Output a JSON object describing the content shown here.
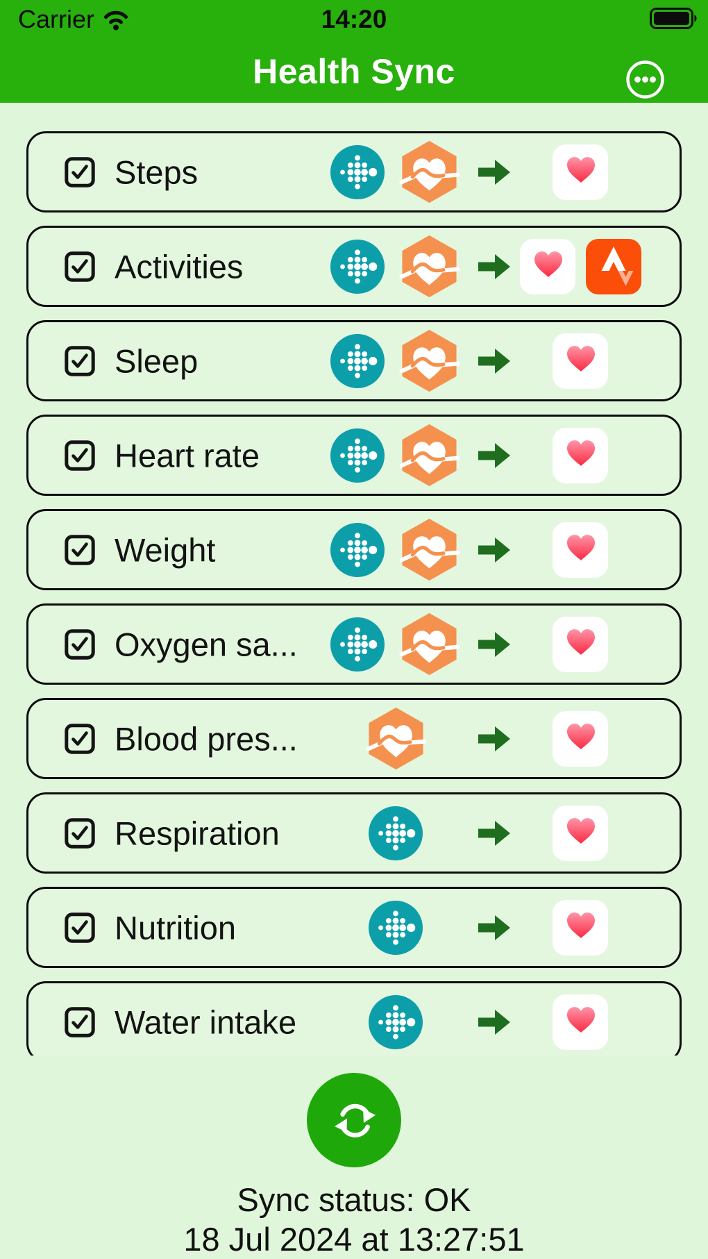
{
  "status_bar": {
    "carrier": "Carrier",
    "time": "14:20",
    "wifi": "wifi-icon",
    "battery": "battery-full-icon"
  },
  "header": {
    "title": "Health Sync",
    "more_button": "ellipsis-circle-icon"
  },
  "rows": [
    {
      "label": "Steps",
      "checked": true,
      "sources": [
        "fitbit",
        "heart_hexagon"
      ],
      "destinations": [
        "apple_health"
      ]
    },
    {
      "label": "Activities",
      "checked": true,
      "sources": [
        "fitbit",
        "heart_hexagon"
      ],
      "destinations": [
        "apple_health",
        "strava"
      ]
    },
    {
      "label": "Sleep",
      "checked": true,
      "sources": [
        "fitbit",
        "heart_hexagon"
      ],
      "destinations": [
        "apple_health"
      ]
    },
    {
      "label": "Heart rate",
      "checked": true,
      "sources": [
        "fitbit",
        "heart_hexagon"
      ],
      "destinations": [
        "apple_health"
      ]
    },
    {
      "label": "Weight",
      "checked": true,
      "sources": [
        "fitbit",
        "heart_hexagon"
      ],
      "destinations": [
        "apple_health"
      ]
    },
    {
      "label": "Oxygen sa...",
      "checked": true,
      "sources": [
        "fitbit",
        "heart_hexagon"
      ],
      "destinations": [
        "apple_health"
      ]
    },
    {
      "label": "Blood pres...",
      "checked": true,
      "sources": [
        "heart_hexagon"
      ],
      "destinations": [
        "apple_health"
      ]
    },
    {
      "label": "Respiration",
      "checked": true,
      "sources": [
        "fitbit"
      ],
      "destinations": [
        "apple_health"
      ]
    },
    {
      "label": "Nutrition",
      "checked": true,
      "sources": [
        "fitbit"
      ],
      "destinations": [
        "apple_health"
      ]
    },
    {
      "label": "Water intake",
      "checked": true,
      "sources": [
        "fitbit"
      ],
      "destinations": [
        "apple_health"
      ]
    }
  ],
  "icons": {
    "fitbit": "fitbit-icon",
    "heart_hexagon": "heart-hexagon-icon",
    "apple_health": "apple-health-icon",
    "strava": "strava-icon",
    "arrow": "arrow-right-icon",
    "checkbox": "checkbox-checked-icon",
    "refresh": "sync-refresh-icon"
  },
  "colors": {
    "header_green": "#28b00d",
    "page_background": "#e0f6db",
    "row_background": "#e3f7df",
    "sync_button_green": "#1fa80a",
    "fitbit_teal": "#0d9fa9",
    "hexagon_orange": "#f5914e",
    "strava_orange": "#fb4e08",
    "strava_light": "#f9b191",
    "arrow_green": "#1f6e1f",
    "heart_gradient_top": "#ff94a7",
    "heart_gradient_bottom": "#fa2a42"
  },
  "footer": {
    "sync_status": "Sync status: OK",
    "last_sync": "18 Jul 2024 at 13:27:51"
  }
}
